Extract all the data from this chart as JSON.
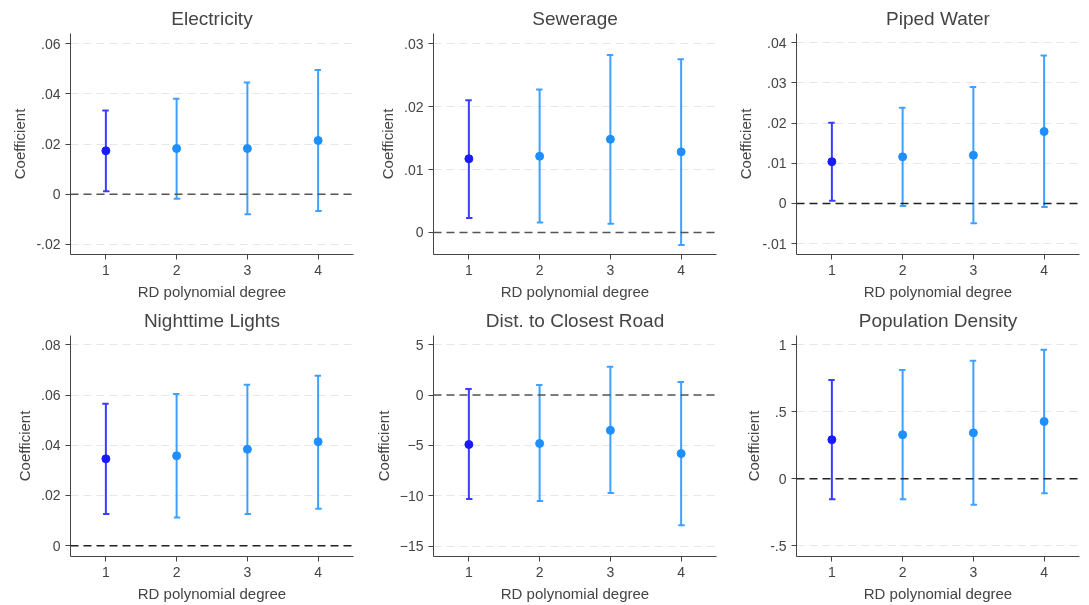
{
  "chart_data": [
    {
      "type": "scatter",
      "title": "Electricity",
      "xlabel": "RD polynomial degree",
      "ylabel": "Coefficient",
      "x": [
        1,
        2,
        3,
        4
      ],
      "xlim": [
        0.5,
        4.5
      ],
      "xticks": [
        1,
        2,
        3,
        4
      ],
      "ylim": [
        -0.024,
        0.064
      ],
      "yticks": [
        {
          "value": -0.02,
          "label": "-.02"
        },
        0,
        {
          "value": 0.02,
          "label": ".02"
        },
        {
          "value": 0.04,
          "label": ".04"
        },
        {
          "value": 0.06,
          "label": ".06"
        }
      ],
      "values": [
        0.0173,
        0.0182,
        0.0182,
        0.0214
      ],
      "errors": [
        [
          0.0012,
          0.0333
        ],
        [
          -0.0018,
          0.038
        ],
        [
          -0.008,
          0.0445
        ],
        [
          -0.0067,
          0.0495
        ]
      ],
      "colors": [
        "#1a1aff",
        "#1e8fff",
        "#1e8fff",
        "#1e8fff"
      ],
      "marker": "circle",
      "grid": "y",
      "ref_lines": [
        {
          "axis": "y",
          "value": 0,
          "color": "#555555",
          "line_style": "dashed"
        }
      ]
    },
    {
      "type": "scatter",
      "title": "Sewerage",
      "xlabel": "RD polynomial degree",
      "ylabel": "Coefficient",
      "x": [
        1,
        2,
        3,
        4
      ],
      "xlim": [
        0.5,
        4.5
      ],
      "xticks": [
        1,
        2,
        3,
        4
      ],
      "ylim": [
        -0.0035,
        0.0316
      ],
      "yticks": [
        0,
        {
          "value": 0.01,
          "label": ".01"
        },
        {
          "value": 0.02,
          "label": ".02"
        },
        {
          "value": 0.03,
          "label": ".03"
        }
      ],
      "values": [
        0.0117,
        0.0121,
        0.0148,
        0.0128
      ],
      "errors": [
        [
          0.0023,
          0.021
        ],
        [
          0.0016,
          0.0227
        ],
        [
          0.0014,
          0.0282
        ],
        [
          -0.002,
          0.0275
        ]
      ],
      "colors": [
        "#1a1aff",
        "#1e8fff",
        "#1e8fff",
        "#1e8fff"
      ],
      "marker": "circle",
      "grid": "y",
      "ref_lines": [
        {
          "axis": "y",
          "value": 0,
          "color": "#555555",
          "line_style": "dashed"
        }
      ]
    },
    {
      "type": "scatter",
      "title": "Piped Water",
      "xlabel": "RD polynomial degree",
      "ylabel": "Coefficient",
      "x": [
        1,
        2,
        3,
        4
      ],
      "xlim": [
        0.5,
        4.5
      ],
      "xticks": [
        1,
        2,
        3,
        4
      ],
      "ylim": [
        -0.0127,
        0.0423
      ],
      "yticks": [
        {
          "value": -0.01,
          "label": "-.01"
        },
        0,
        {
          "value": 0.01,
          "label": ".01"
        },
        {
          "value": 0.02,
          "label": ".02"
        },
        {
          "value": 0.03,
          "label": ".03"
        },
        {
          "value": 0.04,
          "label": ".04"
        }
      ],
      "values": [
        0.0104,
        0.0116,
        0.012,
        0.0179
      ],
      "errors": [
        [
          0.0007,
          0.0201
        ],
        [
          -0.0006,
          0.0238
        ],
        [
          -0.0049,
          0.029
        ],
        [
          -0.0009,
          0.0368
        ]
      ],
      "colors": [
        "#1a1aff",
        "#1e8fff",
        "#1e8fff",
        "#1e8fff"
      ],
      "marker": "circle",
      "grid": "y",
      "ref_lines": [
        {
          "axis": "y",
          "value": 0,
          "color": "#222222",
          "line_style": "dashed"
        }
      ]
    },
    {
      "type": "scatter",
      "title": "Nighttime Lights",
      "xlabel": "RD polynomial degree",
      "ylabel": "Coefficient",
      "x": [
        1,
        2,
        3,
        4
      ],
      "xlim": [
        0.5,
        4.5
      ],
      "xticks": [
        1,
        2,
        3,
        4
      ],
      "ylim": [
        -0.0043,
        0.0837
      ],
      "yticks": [
        0,
        {
          "value": 0.02,
          "label": ".02"
        },
        {
          "value": 0.04,
          "label": ".04"
        },
        {
          "value": 0.06,
          "label": ".06"
        },
        {
          "value": 0.08,
          "label": ".08"
        }
      ],
      "values": [
        0.0346,
        0.0358,
        0.0384,
        0.0414
      ],
      "errors": [
        [
          0.0126,
          0.0565
        ],
        [
          0.0112,
          0.0604
        ],
        [
          0.0126,
          0.0641
        ],
        [
          0.0147,
          0.0677
        ]
      ],
      "colors": [
        "#1a1aff",
        "#1e8fff",
        "#1e8fff",
        "#1e8fff"
      ],
      "marker": "circle",
      "grid": "y",
      "ref_lines": [
        {
          "axis": "y",
          "value": 0,
          "color": "#222222",
          "line_style": "dashed"
        }
      ]
    },
    {
      "type": "scatter",
      "title": "Dist. to Closest Road",
      "xlabel": "RD polynomial degree",
      "ylabel": "Coefficient",
      "x": [
        1,
        2,
        3,
        4
      ],
      "xlim": [
        0.5,
        4.5
      ],
      "xticks": [
        1,
        2,
        3,
        4
      ],
      "ylim": [
        -16.0,
        5.9
      ],
      "yticks": [
        -15,
        -10,
        -5,
        0,
        5
      ],
      "values": [
        -4.9,
        -4.8,
        -3.5,
        -5.8
      ],
      "errors": [
        [
          -10.3,
          0.6
        ],
        [
          -10.5,
          1.0
        ],
        [
          -9.7,
          2.8
        ],
        [
          -12.9,
          1.3
        ]
      ],
      "colors": [
        "#1a1aff",
        "#1e8fff",
        "#1e8fff",
        "#1e8fff"
      ],
      "marker": "circle",
      "grid": "y",
      "ref_lines": [
        {
          "axis": "y",
          "value": 0,
          "color": "#555555",
          "line_style": "dashed"
        }
      ]
    },
    {
      "type": "scatter",
      "title": "Population Density",
      "xlabel": "RD polynomial degree",
      "ylabel": "Coefficient",
      "x": [
        1,
        2,
        3,
        4
      ],
      "xlim": [
        0.5,
        4.5
      ],
      "xticks": [
        1,
        2,
        3,
        4
      ],
      "ylim": [
        -0.58,
        1.07
      ],
      "yticks": [
        {
          "value": -0.5,
          "label": "-.5"
        },
        0,
        {
          "value": 0.5,
          "label": ".5"
        },
        1
      ],
      "values": [
        0.292,
        0.329,
        0.343,
        0.428
      ],
      "errors": [
        [
          -0.153,
          0.737
        ],
        [
          -0.153,
          0.812
        ],
        [
          -0.193,
          0.881
        ],
        [
          -0.107,
          0.964
        ]
      ],
      "colors": [
        "#1a1aff",
        "#1e8fff",
        "#1e8fff",
        "#1e8fff"
      ],
      "marker": "circle",
      "grid": "y",
      "ref_lines": [
        {
          "axis": "y",
          "value": 0,
          "color": "#222222",
          "line_style": "dashed"
        }
      ]
    }
  ]
}
